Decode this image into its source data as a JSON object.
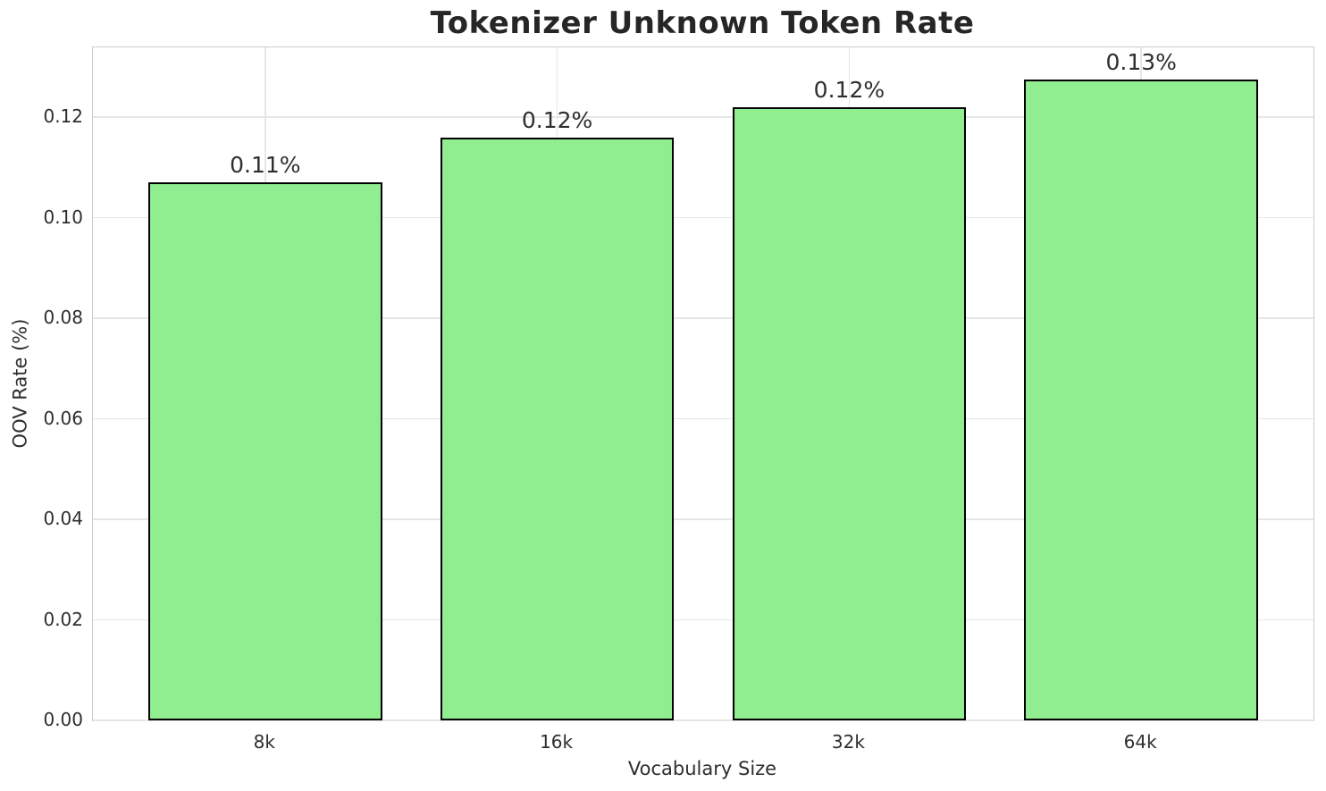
{
  "chart_data": {
    "type": "bar",
    "title": "Tokenizer Unknown Token Rate",
    "xlabel": "Vocabulary Size",
    "ylabel": "OOV Rate (%)",
    "categories": [
      "8k",
      "16k",
      "32k",
      "64k"
    ],
    "values": [
      0.107,
      0.116,
      0.122,
      0.1275
    ],
    "bar_labels": [
      "0.11%",
      "0.12%",
      "0.12%",
      "0.13%"
    ],
    "ytick_values": [
      0.0,
      0.02,
      0.04,
      0.06,
      0.08,
      0.1,
      0.12
    ],
    "ytick_labels": [
      "0.00",
      "0.02",
      "0.04",
      "0.06",
      "0.08",
      "0.10",
      "0.12"
    ],
    "ylim": [
      0,
      0.1339
    ],
    "grid": true,
    "legend_position": "none",
    "colors": {
      "bar_fill": "#90EE90",
      "bar_edge": "#000000",
      "gridline": "#e6e6e6",
      "spine": "#cccccc",
      "text": "#2e2e2e",
      "title_text": "#262626",
      "background": "#ffffff"
    }
  }
}
